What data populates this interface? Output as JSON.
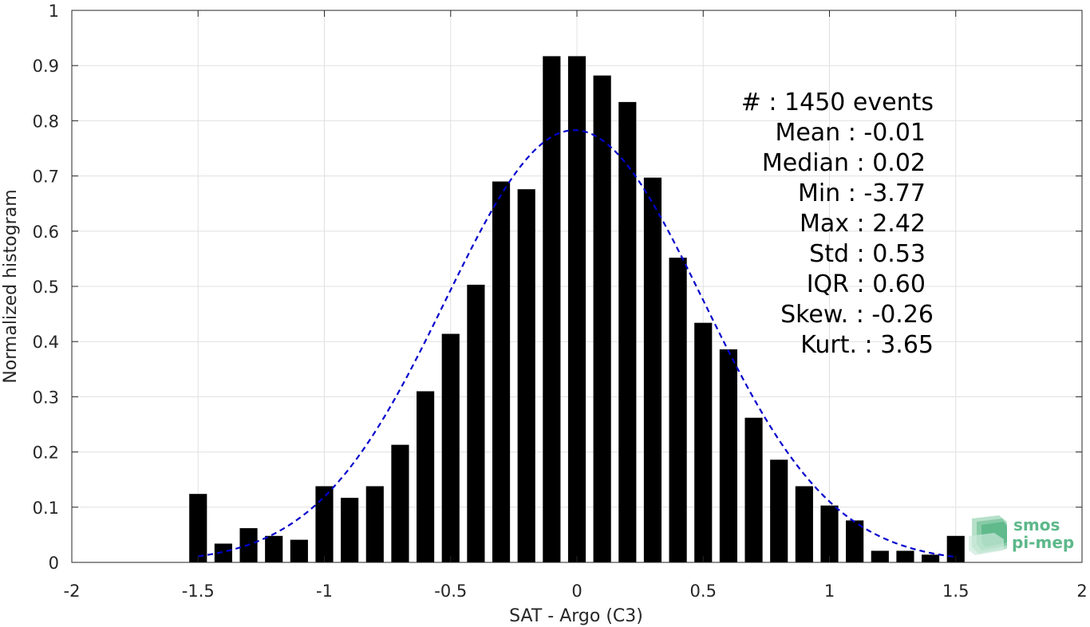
{
  "chart_data": {
    "type": "bar",
    "xlabel": "SAT - Argo (C3)",
    "ylabel": "Normalized histogram",
    "xlim": [
      -2,
      2
    ],
    "ylim": [
      0,
      1
    ],
    "grid": true,
    "xticks": [
      -2,
      -1.5,
      -1,
      -0.5,
      0,
      0.5,
      1,
      1.5,
      2
    ],
    "yticks": [
      0,
      0.1,
      0.2,
      0.3,
      0.4,
      0.5,
      0.6,
      0.7,
      0.8,
      0.9,
      1
    ],
    "xtick_labels": [
      "-2",
      "-1.5",
      "-1",
      "-0.5",
      "0",
      "0.5",
      "1",
      "1.5",
      "2"
    ],
    "ytick_labels": [
      "0",
      "0.1",
      "0.2",
      "0.3",
      "0.4",
      "0.5",
      "0.6",
      "0.7",
      "0.8",
      "0.9",
      "1"
    ],
    "bar_color": "#000000",
    "bars": {
      "x": [
        -1.5,
        -1.4,
        -1.3,
        -1.2,
        -1.1,
        -1.0,
        -0.9,
        -0.8,
        -0.7,
        -0.6,
        -0.5,
        -0.4,
        -0.3,
        -0.2,
        -0.1,
        0.0,
        0.1,
        0.2,
        0.3,
        0.4,
        0.5,
        0.6,
        0.7,
        0.8,
        0.9,
        1.0,
        1.1,
        1.2,
        1.3,
        1.4,
        1.5
      ],
      "values": [
        0.124,
        0.034,
        0.062,
        0.048,
        0.041,
        0.138,
        0.117,
        0.138,
        0.213,
        0.31,
        0.414,
        0.503,
        0.69,
        0.676,
        0.917,
        0.917,
        0.882,
        0.834,
        0.697,
        0.552,
        0.434,
        0.386,
        0.262,
        0.186,
        0.138,
        0.103,
        0.076,
        0.021,
        0.021,
        0.014,
        0.048
      ],
      "width": 0.07
    },
    "fit_curve": {
      "type": "gaussian",
      "mean": -0.01,
      "std": 0.51,
      "peak": 0.783,
      "x_range": [
        -1.5,
        1.5
      ],
      "color": "#0000cc",
      "style": "dashed"
    },
    "annotations": [
      "#  : 1450 events",
      "Mean : -0.01",
      "Median : 0.02",
      "Min : -3.77",
      "Max : 2.42",
      "Std : 0.53",
      "IQR : 0.60",
      "Skew. : -0.26",
      "Kurt. : 3.65"
    ]
  },
  "logo": {
    "line1": "smos",
    "line2": "pi-mep",
    "color": "#5cb88a"
  }
}
